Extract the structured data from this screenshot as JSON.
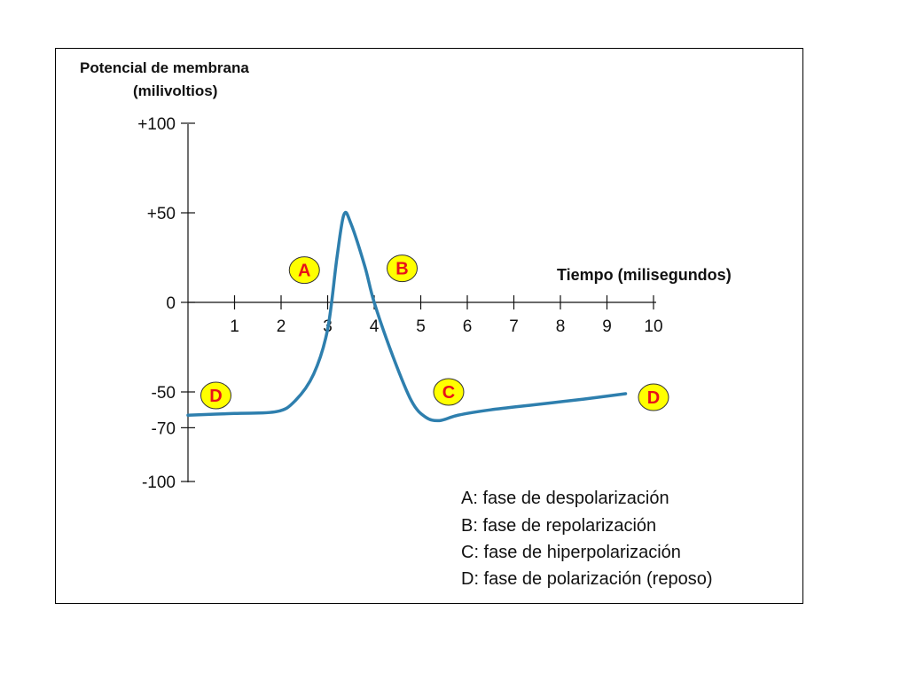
{
  "chart_data": {
    "type": "line",
    "ylabel": [
      "Potencial de membrana",
      "(milivoltios)"
    ],
    "xlabel": "Tiempo (milisegundos)",
    "xlim": [
      0,
      10
    ],
    "ylim": [
      -100,
      100
    ],
    "x_ticks": [
      "1",
      "2",
      "3",
      "4",
      "5",
      "6",
      "7",
      "8",
      "9",
      "10"
    ],
    "y_ticks": [
      {
        "value": 100,
        "label": "+100"
      },
      {
        "value": 50,
        "label": "+50"
      },
      {
        "value": 0,
        "label": "0"
      },
      {
        "value": -50,
        "label": "-50"
      },
      {
        "value": -70,
        "label": "-70"
      },
      {
        "value": -100,
        "label": "-100"
      }
    ],
    "series": [
      {
        "color": "#2e7fae",
        "points": [
          [
            0,
            -63
          ],
          [
            1,
            -62
          ],
          [
            1.9,
            -61
          ],
          [
            2.3,
            -55
          ],
          [
            2.7,
            -40
          ],
          [
            3.0,
            -15
          ],
          [
            3.2,
            25
          ],
          [
            3.35,
            49
          ],
          [
            3.5,
            44
          ],
          [
            3.8,
            20
          ],
          [
            4.0,
            0
          ],
          [
            4.4,
            -30
          ],
          [
            4.8,
            -55
          ],
          [
            5.1,
            -64
          ],
          [
            5.4,
            -66
          ],
          [
            5.8,
            -63
          ],
          [
            6.5,
            -60
          ],
          [
            7.5,
            -57
          ],
          [
            8.5,
            -54
          ],
          [
            9.4,
            -51
          ]
        ]
      }
    ],
    "markers": [
      {
        "label": "A",
        "x": 2.5,
        "y": 18
      },
      {
        "label": "B",
        "x": 4.6,
        "y": 19
      },
      {
        "label": "C",
        "x": 5.6,
        "y": -50
      },
      {
        "label": "D",
        "x": 0.6,
        "y": -52
      },
      {
        "label": "D",
        "x": 10.0,
        "y": -53
      }
    ],
    "legend": [
      "A: fase de despolarización",
      "B: fase de repolarización",
      "C: fase de hiperpolarización",
      "D: fase de polarización (reposo)"
    ],
    "marker_fill": "#ffff00"
  }
}
